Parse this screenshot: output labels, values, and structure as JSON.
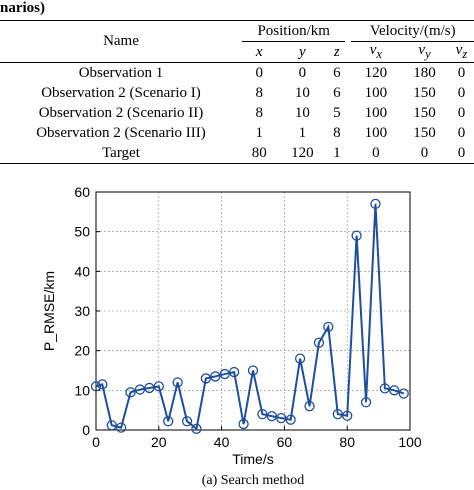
{
  "table": {
    "caption_fragment": "narios)",
    "headers": {
      "name": "Name",
      "position_group": "Position/km",
      "velocity_group": "Velocity/(m/s)",
      "position_cols": [
        "x",
        "y",
        "z"
      ],
      "velocity_cols": [
        "v",
        "v",
        "v"
      ],
      "velocity_subs": [
        "x",
        "y",
        "z"
      ]
    },
    "rows": [
      {
        "name": "Observation 1",
        "values": [
          "0",
          "0",
          "6",
          "120",
          "180",
          "0"
        ]
      },
      {
        "name": "Observation 2 (Scenario I)",
        "values": [
          "8",
          "10",
          "6",
          "100",
          "150",
          "0"
        ]
      },
      {
        "name": "Observation 2 (Scenario II)",
        "values": [
          "8",
          "10",
          "5",
          "100",
          "150",
          "0"
        ]
      },
      {
        "name": "Observation 2 (Scenario III)",
        "values": [
          "1",
          "1",
          "8",
          "100",
          "150",
          "0"
        ]
      },
      {
        "name": "Target",
        "values": [
          "80",
          "120",
          "1",
          "0",
          "0",
          "0"
        ]
      }
    ]
  },
  "chart_data": {
    "type": "line",
    "xlabel": "Time/s",
    "ylabel": "P_RMSE/km",
    "caption": "(a) Search method",
    "xlim": [
      0,
      100
    ],
    "ylim": [
      0,
      60
    ],
    "xticks": [
      0,
      20,
      40,
      60,
      80,
      100
    ],
    "yticks": [
      0,
      10,
      20,
      30,
      40,
      50,
      60
    ],
    "grid": true,
    "line_color": "#1f4e9c",
    "series": [
      {
        "x": [
          0,
          2,
          5,
          8,
          11,
          14,
          17,
          20,
          23,
          26,
          29,
          32,
          35,
          38,
          41,
          44,
          47,
          50,
          53,
          56,
          59,
          62,
          65,
          68,
          71,
          74,
          77,
          80,
          83,
          86,
          89,
          92,
          95,
          98
        ],
        "y": [
          11,
          11.5,
          1.2,
          0.6,
          9.5,
          10.2,
          10.6,
          11,
          2.2,
          12,
          2.2,
          0.3,
          13,
          13.5,
          14.1,
          14.6,
          1.5,
          15,
          4,
          3.5,
          3,
          2.6,
          18,
          6,
          22,
          26,
          4,
          3.6,
          49,
          7,
          57,
          10.5,
          10,
          9.2
        ]
      }
    ]
  }
}
